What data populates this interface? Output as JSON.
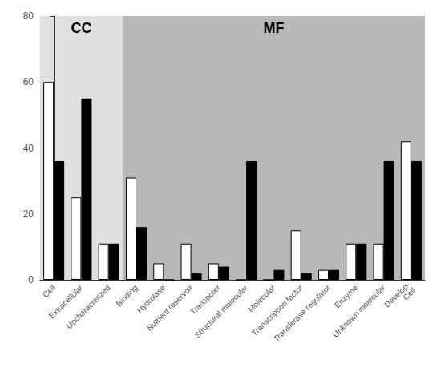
{
  "chart_data": {
    "type": "bar",
    "categories": [
      "Cell",
      "Extracellular",
      "Uncharacterized",
      "Binding",
      "Hydrolase",
      "Nutrient reservoir",
      "Transpoter",
      "Structural molecular",
      "Molecular",
      "Transcription factor",
      "Transferase regulator",
      "Enzyme",
      "Unknown molecular",
      "Develop-\nCell"
    ],
    "series": [
      {
        "color": "white",
        "values": [
          60,
          25,
          11,
          31,
          5,
          11,
          5,
          0,
          0,
          15,
          3,
          11,
          11,
          42
        ]
      },
      {
        "color": "black",
        "values": [
          36,
          55,
          11,
          16,
          0,
          2,
          4,
          36,
          3,
          2,
          3,
          11,
          36,
          36
        ]
      }
    ],
    "ylim": [
      0,
      80
    ],
    "yticks": [
      0,
      20,
      40,
      60,
      80
    ],
    "grid": false,
    "annotations": [
      {
        "text": "CC",
        "from": "Cell",
        "to": "Uncharacterized",
        "color": "#e0e0e0"
      },
      {
        "text": "MF",
        "from": "Binding",
        "to": "Develop-\nCell",
        "color": "#b8b8b8"
      }
    ]
  }
}
